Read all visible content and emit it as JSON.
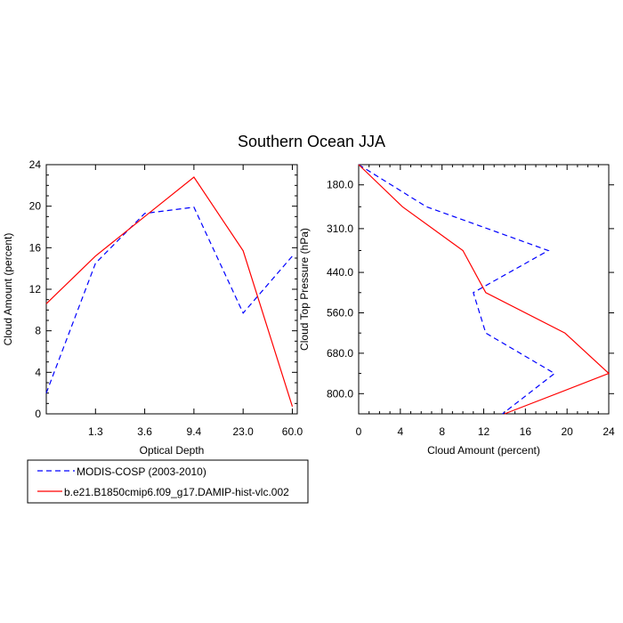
{
  "title": "Southern Ocean JJA",
  "legend": {
    "placement": "bottom-left",
    "items": [
      {
        "label": "MODIS-COSP (2003-2010)",
        "color": "#0000ff",
        "dash": "dashed"
      },
      {
        "label": "b.e21.B1850cmip6.f09_g17.DAMIP-hist-vlc.002",
        "color": "#ff0000",
        "dash": "solid"
      }
    ]
  },
  "chart_data": [
    {
      "type": "line",
      "title": "",
      "xlabel": "Optical Depth",
      "ylabel": "Cloud Amount (percent)",
      "x_tick_labels": [
        "1.3",
        "3.6",
        "9.4",
        "23.0",
        "60.0"
      ],
      "y_tick_labels": [
        "0",
        "4",
        "8",
        "12",
        "16",
        "20",
        "24"
      ],
      "ylim": [
        0,
        24
      ],
      "grid": false,
      "series": [
        {
          "name": "MODIS-COSP (2003-2010)",
          "color": "#0000ff",
          "dash": "dashed",
          "points": [
            [
              0,
              2.0
            ],
            [
              1.3,
              14.5
            ],
            [
              3.6,
              19.3
            ],
            [
              9.4,
              19.9
            ],
            [
              23.0,
              9.7
            ],
            [
              60.0,
              15.2
            ]
          ]
        },
        {
          "name": "b.e21.B1850cmip6.f09_g17.DAMIP-hist-vlc.002",
          "color": "#ff0000",
          "dash": "solid",
          "points": [
            [
              0,
              10.6
            ],
            [
              1.3,
              15.2
            ],
            [
              3.6,
              19.0
            ],
            [
              9.4,
              22.8
            ],
            [
              23.0,
              15.7
            ],
            [
              60.0,
              0.7
            ]
          ]
        }
      ]
    },
    {
      "type": "line",
      "title": "",
      "xlabel": "Cloud Amount (percent)",
      "ylabel": "Cloud Top Pressure (hPa)",
      "x_tick_labels": [
        "0",
        "4",
        "8",
        "12",
        "16",
        "20",
        "24"
      ],
      "y_tick_labels": [
        "180.0",
        "310.0",
        "440.0",
        "560.0",
        "680.0",
        "800.0"
      ],
      "xlim": [
        0,
        24
      ],
      "grid": false,
      "series": [
        {
          "name": "MODIS-COSP (2003-2010)",
          "color": "#0000ff",
          "dash": "dashed",
          "points": [
            [
              0,
              120
            ],
            [
              6.5,
              245
            ],
            [
              18.2,
              375
            ],
            [
              11.0,
              500
            ],
            [
              12.2,
              620
            ],
            [
              18.8,
              740
            ],
            [
              13.8,
              860
            ]
          ]
        },
        {
          "name": "b.e21.B1850cmip6.f09_g17.DAMIP-hist-vlc.002",
          "color": "#ff0000",
          "dash": "solid",
          "points": [
            [
              0,
              120
            ],
            [
              4.2,
              245
            ],
            [
              10.0,
              375
            ],
            [
              12.2,
              500
            ],
            [
              19.8,
              620
            ],
            [
              24.0,
              740
            ],
            [
              14.0,
              860
            ]
          ]
        }
      ]
    }
  ]
}
